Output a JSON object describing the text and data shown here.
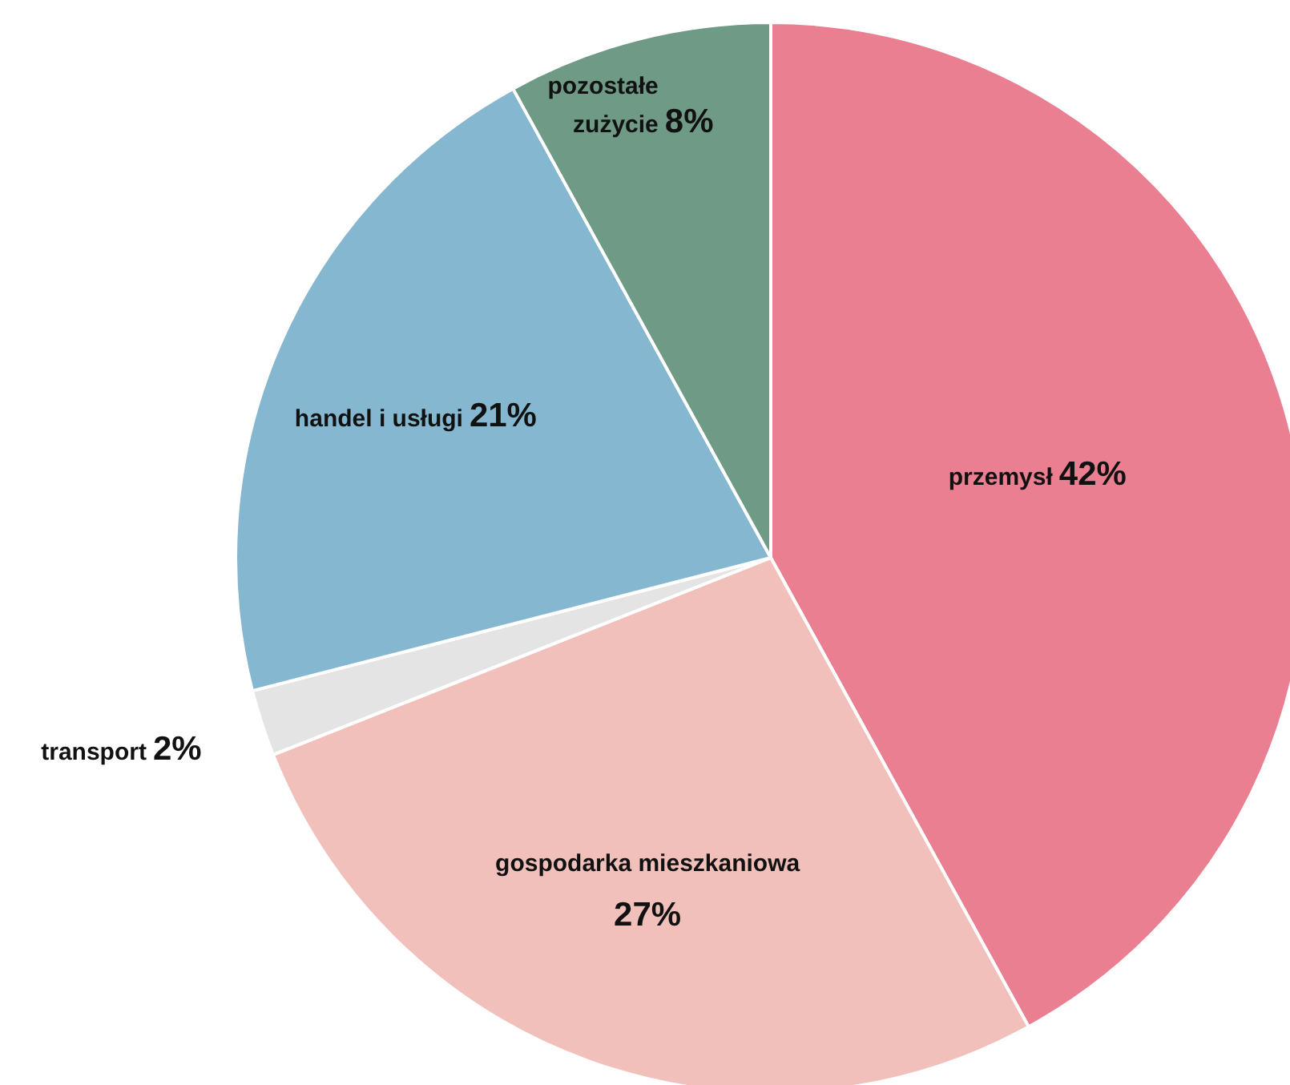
{
  "chart_data": {
    "type": "pie",
    "categories": [
      "przemysł",
      "gospodarka mieszkaniowa",
      "transport",
      "handel i usługi",
      "pozostałe zużycie"
    ],
    "values": [
      42,
      27,
      2,
      21,
      8
    ],
    "value_labels": [
      "42%",
      "27%",
      "2%",
      "21%",
      "8%"
    ],
    "colors": [
      "#e97f91",
      "#f2c0bb",
      "#e4e4e4",
      "#85b8d0",
      "#6e9a86"
    ]
  }
}
